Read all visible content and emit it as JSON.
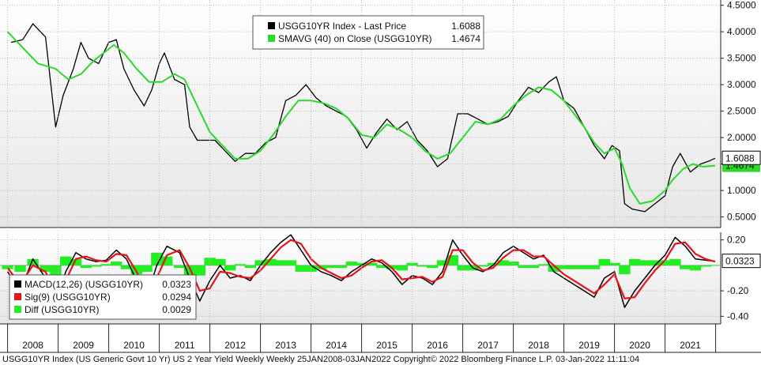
{
  "chart_data": [
    {
      "type": "line",
      "panel": "price",
      "ylim": [
        0.3,
        4.6
      ],
      "y_ticks": [
        "4.5000",
        "4.0000",
        "3.5000",
        "3.0000",
        "2.5000",
        "2.0000",
        "1.5000",
        "1.0000",
        "0.5000"
      ],
      "y_tick_values": [
        4.5,
        4.0,
        3.5,
        3.0,
        2.5,
        2.0,
        1.5,
        1.0,
        0.5
      ],
      "last_value_label": "1.6088",
      "last_value_label_2": "1.4674",
      "legend": [
        {
          "name": "USGG10YR Index - Last Price",
          "value": "1.6088",
          "color": "#000000"
        },
        {
          "name": "SMAVG (40)  on Close (USGG10YR)",
          "value": "1.4674",
          "color": "#2bd92b"
        }
      ],
      "series": [
        {
          "name": "USGG10YR Index - Last Price",
          "color": "#000000",
          "x": [
            2008.07,
            2008.3,
            2008.5,
            2008.75,
            2008.95,
            2009.1,
            2009.3,
            2009.45,
            2009.6,
            2009.8,
            2010.0,
            2010.15,
            2010.3,
            2010.5,
            2010.7,
            2010.85,
            2011.0,
            2011.1,
            2011.3,
            2011.5,
            2011.6,
            2011.75,
            2011.9,
            2012.1,
            2012.3,
            2012.5,
            2012.7,
            2012.9,
            2013.1,
            2013.3,
            2013.5,
            2013.7,
            2013.9,
            2014.1,
            2014.3,
            2014.5,
            2014.7,
            2014.9,
            2015.1,
            2015.3,
            2015.5,
            2015.7,
            2015.9,
            2016.1,
            2016.3,
            2016.5,
            2016.7,
            2016.9,
            2017.1,
            2017.3,
            2017.5,
            2017.7,
            2017.9,
            2018.1,
            2018.3,
            2018.5,
            2018.7,
            2018.85,
            2019.0,
            2019.2,
            2019.4,
            2019.6,
            2019.8,
            2019.95,
            2020.1,
            2020.2,
            2020.35,
            2020.6,
            2020.8,
            2021.0,
            2021.15,
            2021.3,
            2021.5,
            2021.7,
            2021.85,
            2021.99
          ],
          "values": [
            3.8,
            3.85,
            4.15,
            3.9,
            2.2,
            2.8,
            3.3,
            3.8,
            3.5,
            3.4,
            3.8,
            3.85,
            3.3,
            2.9,
            2.6,
            2.9,
            3.4,
            3.6,
            3.1,
            3.0,
            2.2,
            1.95,
            1.95,
            1.95,
            1.75,
            1.55,
            1.7,
            1.7,
            1.9,
            2.0,
            2.7,
            2.8,
            3.0,
            2.75,
            2.6,
            2.5,
            2.4,
            2.15,
            1.8,
            2.1,
            2.35,
            2.15,
            2.3,
            1.95,
            1.75,
            1.45,
            1.6,
            2.45,
            2.45,
            2.35,
            2.25,
            2.3,
            2.4,
            2.7,
            2.95,
            2.85,
            3.05,
            3.15,
            2.7,
            2.55,
            2.2,
            1.85,
            1.6,
            1.85,
            1.75,
            0.75,
            0.65,
            0.6,
            0.75,
            0.9,
            1.45,
            1.7,
            1.35,
            1.5,
            1.55,
            1.61
          ]
        },
        {
          "name": "SMAVG (40)  on Close (USGG10YR)",
          "color": "#2bd92b",
          "x": [
            2008.0,
            2008.3,
            2008.6,
            2008.95,
            2009.2,
            2009.45,
            2009.7,
            2009.9,
            2010.1,
            2010.3,
            2010.55,
            2010.8,
            2011.05,
            2011.3,
            2011.5,
            2011.75,
            2012.0,
            2012.25,
            2012.5,
            2012.75,
            2013.0,
            2013.25,
            2013.5,
            2013.75,
            2014.0,
            2014.25,
            2014.5,
            2014.75,
            2015.0,
            2015.25,
            2015.5,
            2015.75,
            2016.0,
            2016.25,
            2016.5,
            2016.75,
            2017.0,
            2017.25,
            2017.5,
            2017.75,
            2018.0,
            2018.25,
            2018.5,
            2018.75,
            2019.0,
            2019.2,
            2019.4,
            2019.6,
            2019.8,
            2020.0,
            2020.15,
            2020.3,
            2020.5,
            2020.75,
            2021.0,
            2021.15,
            2021.35,
            2021.55,
            2021.75,
            2021.99
          ],
          "values": [
            4.0,
            3.7,
            3.4,
            3.3,
            3.1,
            3.2,
            3.45,
            3.6,
            3.75,
            3.6,
            3.3,
            3.05,
            3.05,
            3.2,
            3.1,
            2.6,
            2.1,
            1.85,
            1.6,
            1.6,
            1.75,
            2.05,
            2.4,
            2.7,
            2.7,
            2.65,
            2.55,
            2.35,
            2.05,
            2.0,
            2.25,
            2.15,
            2.0,
            1.75,
            1.6,
            1.7,
            2.0,
            2.3,
            2.25,
            2.35,
            2.6,
            2.8,
            2.95,
            2.9,
            2.7,
            2.45,
            2.2,
            1.9,
            1.7,
            1.8,
            1.5,
            1.05,
            0.75,
            0.8,
            1.0,
            1.2,
            1.4,
            1.5,
            1.45,
            1.47
          ]
        }
      ]
    },
    {
      "type": "line",
      "panel": "macd",
      "ylim": [
        -0.46,
        0.26
      ],
      "y_ticks": [
        "0.20",
        "-0.20",
        "-0.40"
      ],
      "y_tick_values": [
        0.2,
        -0.2,
        -0.4
      ],
      "last_value_label": "0.0323",
      "legend": [
        {
          "name": "MACD(12,26) (USGG10YR)",
          "value": "0.0323",
          "color": "#000000"
        },
        {
          "name": "Sig(9) (USGG10YR)",
          "value": "0.0294",
          "color": "#e3141a"
        },
        {
          "name": "Diff (USGG10YR)",
          "value": "0.0029",
          "color": "#22ee22"
        }
      ],
      "series": [
        {
          "name": "MACD(12,26) (USGG10YR)",
          "color": "#000000",
          "x": [
            2008.0,
            2008.25,
            2008.5,
            2008.75,
            2008.95,
            2009.15,
            2009.35,
            2009.55,
            2009.75,
            2009.95,
            2010.15,
            2010.35,
            2010.55,
            2010.75,
            2010.95,
            2011.15,
            2011.4,
            2011.6,
            2011.8,
            2012.0,
            2012.2,
            2012.4,
            2012.6,
            2012.8,
            2013.0,
            2013.2,
            2013.4,
            2013.6,
            2013.8,
            2014.0,
            2014.2,
            2014.4,
            2014.6,
            2014.8,
            2015.0,
            2015.2,
            2015.4,
            2015.6,
            2015.8,
            2016.0,
            2016.2,
            2016.4,
            2016.6,
            2016.8,
            2017.0,
            2017.2,
            2017.4,
            2017.6,
            2017.8,
            2018.0,
            2018.2,
            2018.4,
            2018.6,
            2018.8,
            2019.0,
            2019.2,
            2019.4,
            2019.6,
            2019.8,
            2020.0,
            2020.2,
            2020.4,
            2020.6,
            2020.8,
            2021.0,
            2021.2,
            2021.4,
            2021.6,
            2021.8,
            2021.99
          ],
          "values": [
            -0.05,
            -0.2,
            0.05,
            -0.1,
            -0.3,
            -0.05,
            0.1,
            0.05,
            0.03,
            0.04,
            0.12,
            0.05,
            -0.12,
            -0.25,
            0.0,
            0.15,
            0.1,
            -0.1,
            -0.28,
            -0.12,
            0.0,
            -0.1,
            -0.08,
            -0.12,
            0.0,
            0.1,
            0.18,
            0.24,
            0.12,
            0.0,
            -0.05,
            -0.08,
            -0.12,
            -0.05,
            0.0,
            0.05,
            0.02,
            -0.05,
            -0.15,
            -0.08,
            -0.1,
            -0.15,
            -0.05,
            0.2,
            0.08,
            -0.02,
            -0.05,
            0.0,
            0.1,
            0.15,
            0.1,
            0.05,
            0.08,
            -0.05,
            -0.1,
            -0.15,
            -0.2,
            -0.25,
            -0.1,
            -0.05,
            -0.33,
            -0.2,
            -0.1,
            0.0,
            0.08,
            0.22,
            0.15,
            0.05,
            0.04,
            0.0323
          ]
        },
        {
          "name": "Sig(9) (USGG10YR)",
          "color": "#e3141a",
          "x": [
            2008.0,
            2008.25,
            2008.5,
            2008.75,
            2008.95,
            2009.15,
            2009.35,
            2009.55,
            2009.75,
            2009.95,
            2010.15,
            2010.35,
            2010.55,
            2010.75,
            2010.95,
            2011.15,
            2011.4,
            2011.6,
            2011.8,
            2012.0,
            2012.2,
            2012.4,
            2012.6,
            2012.8,
            2013.0,
            2013.2,
            2013.4,
            2013.6,
            2013.8,
            2014.0,
            2014.2,
            2014.4,
            2014.6,
            2014.8,
            2015.0,
            2015.2,
            2015.4,
            2015.6,
            2015.8,
            2016.0,
            2016.2,
            2016.4,
            2016.6,
            2016.8,
            2017.0,
            2017.2,
            2017.4,
            2017.6,
            2017.8,
            2018.0,
            2018.2,
            2018.4,
            2018.6,
            2018.8,
            2019.0,
            2019.2,
            2019.4,
            2019.6,
            2019.8,
            2020.0,
            2020.2,
            2020.4,
            2020.6,
            2020.8,
            2021.0,
            2021.2,
            2021.4,
            2021.6,
            2021.8,
            2021.99
          ],
          "values": [
            -0.02,
            -0.15,
            0.0,
            -0.05,
            -0.22,
            -0.12,
            0.05,
            0.07,
            0.04,
            0.03,
            0.09,
            0.08,
            -0.05,
            -0.2,
            -0.1,
            0.08,
            0.12,
            -0.02,
            -0.2,
            -0.18,
            -0.05,
            -0.06,
            -0.09,
            -0.1,
            -0.04,
            0.05,
            0.14,
            0.2,
            0.17,
            0.05,
            -0.02,
            -0.06,
            -0.1,
            -0.08,
            -0.02,
            0.03,
            0.04,
            -0.02,
            -0.11,
            -0.1,
            -0.09,
            -0.13,
            -0.09,
            0.12,
            0.12,
            0.02,
            -0.04,
            -0.02,
            0.06,
            0.12,
            0.12,
            0.07,
            0.07,
            0.0,
            -0.07,
            -0.12,
            -0.17,
            -0.22,
            -0.15,
            -0.07,
            -0.26,
            -0.25,
            -0.14,
            -0.04,
            0.04,
            0.17,
            0.18,
            0.09,
            0.05,
            0.0294
          ]
        }
      ]
    }
  ],
  "x_axis": {
    "labels": [
      "2008",
      "2009",
      "2010",
      "2011",
      "2012",
      "2013",
      "2014",
      "2015",
      "2016",
      "2017",
      "2018",
      "2019",
      "2020",
      "2021"
    ],
    "range": [
      2007.85,
      2022.1
    ]
  },
  "footer": "USGG10YR Index (US Generic Govt 10 Yr) US 2 Year Yield Weekly  Weekly 25JAN2008-03JAN2022 Copyright© 2022 Bloomberg Finance L.P. 03-Jan-2022 11:11:04"
}
